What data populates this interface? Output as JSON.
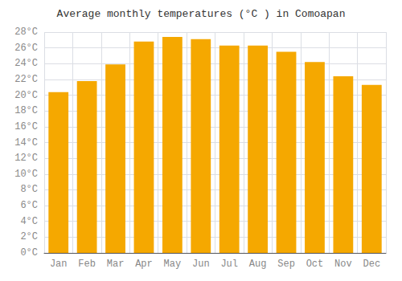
{
  "chart_data": {
    "type": "bar",
    "title": "Average monthly temperatures (°C ) in Comoapan",
    "categories": [
      "Jan",
      "Feb",
      "Mar",
      "Apr",
      "May",
      "Jun",
      "Jul",
      "Aug",
      "Sep",
      "Oct",
      "Nov",
      "Dec"
    ],
    "values": [
      20.4,
      21.8,
      23.9,
      26.8,
      27.4,
      27.1,
      26.3,
      26.3,
      25.5,
      24.2,
      22.4,
      21.3
    ],
    "color": "#F5A800",
    "ylim": [
      0,
      28
    ],
    "yticks": [
      {
        "value": 0,
        "label": "0°C"
      },
      {
        "value": 2,
        "label": "2°C"
      },
      {
        "value": 4,
        "label": "4°C"
      },
      {
        "value": 6,
        "label": "6°C"
      },
      {
        "value": 8,
        "label": "8°C"
      },
      {
        "value": 10,
        "label": "10°C"
      },
      {
        "value": 12,
        "label": "12°C"
      },
      {
        "value": 14,
        "label": "14°C"
      },
      {
        "value": 16,
        "label": "16°C"
      },
      {
        "value": 18,
        "label": "18°C"
      },
      {
        "value": 20,
        "label": "20°C"
      },
      {
        "value": 22,
        "label": "22°C"
      },
      {
        "value": 24,
        "label": "24°C"
      },
      {
        "value": 26,
        "label": "26°C"
      },
      {
        "value": 28,
        "label": "28°C"
      }
    ],
    "grid": true
  }
}
